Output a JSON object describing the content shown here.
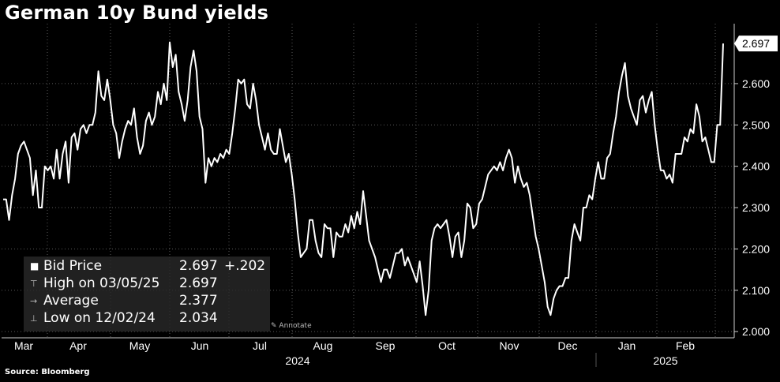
{
  "title": "German 10y Bund yields",
  "source": "Source: Bloomberg",
  "annotate_label": "Annotate",
  "colors": {
    "background": "#000000",
    "line": "#ffffff",
    "grid": "#5a5a5a",
    "legend_bg": "#282828"
  },
  "legend": {
    "rows": [
      {
        "icon": "square-icon",
        "label": "Bid Price",
        "value": "2.697",
        "change": "+.202"
      },
      {
        "icon": "high-marker-icon",
        "label": "High on 03/05/25",
        "value": "2.697",
        "change": ""
      },
      {
        "icon": "average-marker-icon",
        "label": "Average",
        "value": "2.377",
        "change": ""
      },
      {
        "icon": "low-marker-icon",
        "label": "Low on 12/02/24",
        "value": "2.034",
        "change": ""
      }
    ]
  },
  "chart_data": {
    "type": "line",
    "title": "German 10y Bund yields",
    "xlabel": "",
    "ylabel": "",
    "x_tick_labels": [
      "Mar",
      "Apr",
      "May",
      "Jun",
      "Jul",
      "Aug",
      "Sep",
      "Oct",
      "Nov",
      "Dec",
      "Jan",
      "Feb"
    ],
    "year_labels": [
      "2024",
      "2025"
    ],
    "y_ticks": [
      "2.000",
      "2.100",
      "2.200",
      "2.300",
      "2.400",
      "2.500",
      "2.600"
    ],
    "ylim": [
      1.985,
      2.745
    ],
    "last_value_label": "2.697",
    "grid": true,
    "series": [
      {
        "values": [
          2.32,
          2.32,
          2.27,
          2.33,
          2.37,
          2.43,
          2.45,
          2.46,
          2.44,
          2.42,
          2.33,
          2.39,
          2.3,
          2.3,
          2.4,
          2.39,
          2.4,
          2.37,
          2.44,
          2.37,
          2.43,
          2.46,
          2.36,
          2.47,
          2.48,
          2.44,
          2.49,
          2.5,
          2.48,
          2.5,
          2.5,
          2.53,
          2.63,
          2.57,
          2.56,
          2.61,
          2.56,
          2.5,
          2.48,
          2.42,
          2.46,
          2.49,
          2.51,
          2.5,
          2.54,
          2.47,
          2.43,
          2.45,
          2.51,
          2.53,
          2.5,
          2.52,
          2.58,
          2.55,
          2.6,
          2.56,
          2.7,
          2.64,
          2.67,
          2.58,
          2.55,
          2.51,
          2.56,
          2.64,
          2.68,
          2.63,
          2.52,
          2.49,
          2.36,
          2.42,
          2.4,
          2.42,
          2.41,
          2.43,
          2.42,
          2.44,
          2.43,
          2.48,
          2.54,
          2.61,
          2.6,
          2.61,
          2.55,
          2.54,
          2.6,
          2.56,
          2.5,
          2.47,
          2.44,
          2.48,
          2.44,
          2.43,
          2.43,
          2.49,
          2.45,
          2.41,
          2.43,
          2.38,
          2.32,
          2.24,
          2.18,
          2.19,
          2.2,
          2.27,
          2.27,
          2.22,
          2.19,
          2.18,
          2.26,
          2.25,
          2.25,
          2.18,
          2.24,
          2.23,
          2.23,
          2.26,
          2.24,
          2.28,
          2.25,
          2.29,
          2.26,
          2.34,
          2.28,
          2.22,
          2.2,
          2.18,
          2.15,
          2.12,
          2.15,
          2.15,
          2.13,
          2.16,
          2.19,
          2.19,
          2.2,
          2.16,
          2.18,
          2.16,
          2.14,
          2.12,
          2.17,
          2.11,
          2.04,
          2.1,
          2.22,
          2.25,
          2.26,
          2.25,
          2.26,
          2.27,
          2.23,
          2.18,
          2.23,
          2.24,
          2.18,
          2.22,
          2.31,
          2.3,
          2.25,
          2.26,
          2.31,
          2.32,
          2.35,
          2.38,
          2.39,
          2.4,
          2.39,
          2.41,
          2.39,
          2.42,
          2.44,
          2.42,
          2.36,
          2.4,
          2.37,
          2.35,
          2.36,
          2.33,
          2.28,
          2.23,
          2.2,
          2.16,
          2.12,
          2.06,
          2.04,
          2.08,
          2.1,
          2.11,
          2.11,
          2.13,
          2.13,
          2.22,
          2.26,
          2.24,
          2.22,
          2.3,
          2.3,
          2.33,
          2.32,
          2.37,
          2.41,
          2.37,
          2.37,
          2.42,
          2.43,
          2.48,
          2.52,
          2.58,
          2.62,
          2.65,
          2.57,
          2.54,
          2.52,
          2.5,
          2.56,
          2.57,
          2.53,
          2.56,
          2.58,
          2.5,
          2.44,
          2.39,
          2.39,
          2.37,
          2.38,
          2.36,
          2.43,
          2.43,
          2.43,
          2.47,
          2.46,
          2.49,
          2.48,
          2.55,
          2.52,
          2.46,
          2.47,
          2.44,
          2.41,
          2.41,
          2.5,
          2.5,
          2.697
        ]
      }
    ]
  }
}
